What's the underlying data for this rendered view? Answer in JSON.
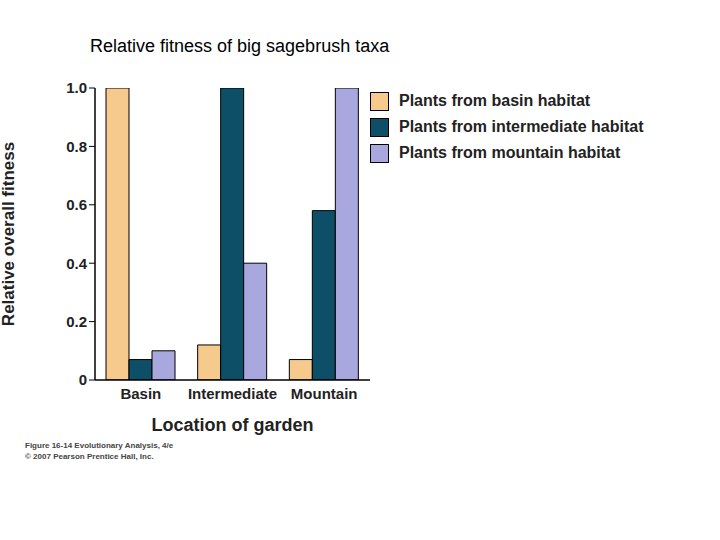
{
  "chart_data": {
    "type": "bar",
    "title": "Relative fitness of big sagebrush taxa",
    "x_label": "Location of garden",
    "y_label": "Relative overall fitness",
    "categories": [
      "Basin",
      "Intermediate",
      "Mountain"
    ],
    "series": [
      {
        "name": "Plants from basin habitat",
        "color": "#f6c98c",
        "values": [
          1.0,
          0.12,
          0.07
        ]
      },
      {
        "name": "Plants from intermediate habitat",
        "color": "#0e4f68",
        "values": [
          0.07,
          1.0,
          0.58
        ]
      },
      {
        "name": "Plants from mountain habitat",
        "color": "#a8a8de",
        "values": [
          0.1,
          0.4,
          1.0
        ]
      }
    ],
    "ylim": [
      0,
      1
    ],
    "yticks": [
      0,
      0.2,
      0.4,
      0.6,
      0.8,
      {
        "value": 1,
        "label": "1.0"
      }
    ],
    "grid": false,
    "legend": "upper right",
    "annotations": [
      "Figure 16-14 Evolutionary Analysis, 4/e",
      "© 2007 Pearson Prentice Hall, Inc."
    ]
  }
}
